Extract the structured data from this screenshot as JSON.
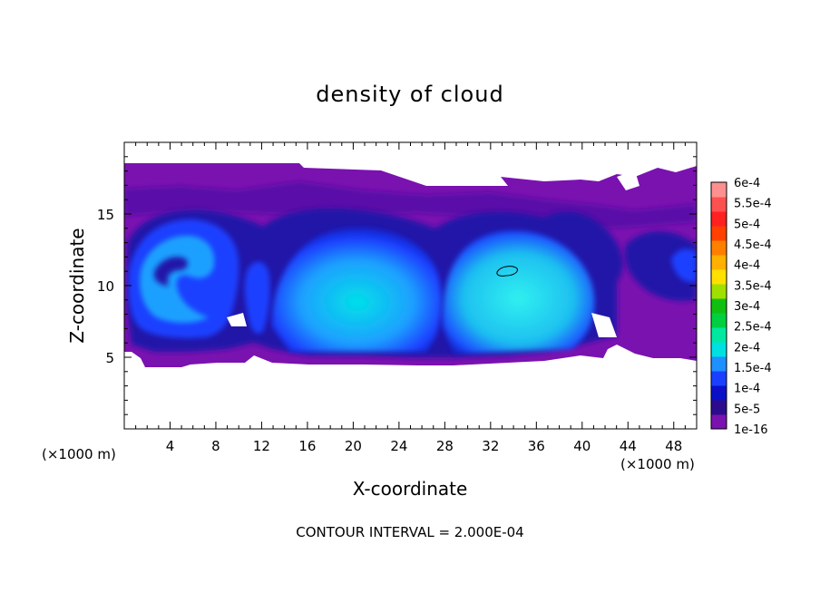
{
  "chart_data": {
    "type": "heatmap",
    "title": "density of cloud",
    "xlabel": "X-coordinate",
    "ylabel": "Z-coordinate",
    "x_unit": "(×1000 m)",
    "xlim": [
      0,
      50
    ],
    "ylim": [
      0,
      20
    ],
    "x_ticks": [
      4,
      8,
      12,
      16,
      20,
      24,
      28,
      32,
      36,
      40,
      44,
      48
    ],
    "y_ticks": [
      5,
      10,
      15
    ],
    "footer": "CONTOUR INTERVAL = 2.000E-04",
    "colorbar": {
      "labels": [
        "1e-16",
        "5e-5",
        "1e-4",
        "1.5e-4",
        "2e-4",
        "2.5e-4",
        "3e-4",
        "3.5e-4",
        "4e-4",
        "4.5e-4",
        "5e-4",
        "5.5e-4",
        "6e-4"
      ],
      "colors": [
        "#7a12b0",
        "#2c0c8c",
        "#0a10c8",
        "#1a40ff",
        "#1e90ff",
        "#00e0e0",
        "#00e8a0",
        "#00d040",
        "#10c010",
        "#a0e000",
        "#ffe000",
        "#ffb000",
        "#ff8000",
        "#ff4000",
        "#ff2020",
        "#ff5050",
        "#ff9090"
      ]
    },
    "fields": {
      "background": "#7a12b0",
      "upper_band": "#5a10a8",
      "dark_blue": "#2412a8",
      "blue": "#1a40ff",
      "light_blue": "#1e90ff",
      "cyan": "#00d8e8"
    }
  }
}
